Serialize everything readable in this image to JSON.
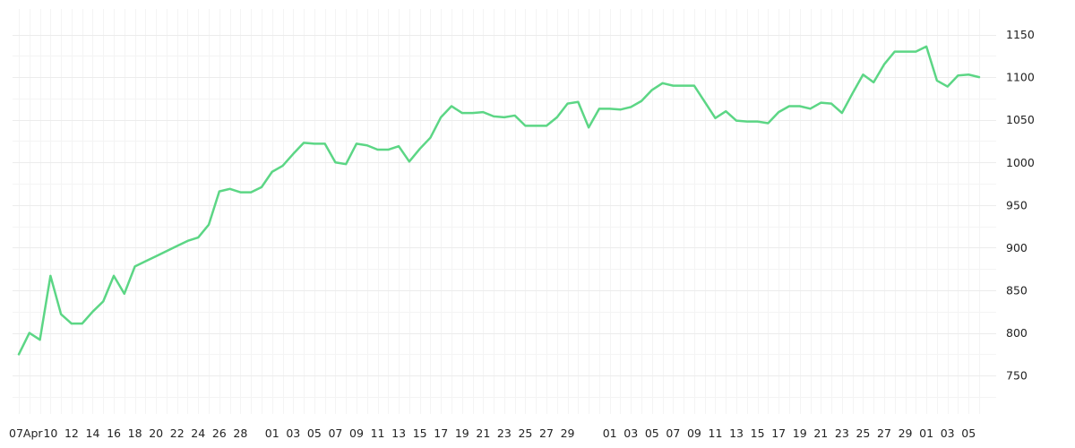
{
  "chart_data": {
    "type": "line",
    "title": "",
    "xlabel": "",
    "ylabel": "",
    "grid": true,
    "y_axis_position": "right",
    "ylim": [
      705,
      1180
    ],
    "y_ticks": [
      750,
      800,
      850,
      900,
      950,
      1000,
      1050,
      1100,
      1150
    ],
    "x_tick_labels": [
      "07Apr",
      "10",
      "12",
      "14",
      "16",
      "18",
      "20",
      "22",
      "24",
      "26",
      "28",
      "01",
      "03",
      "05",
      "07",
      "09",
      "11",
      "13",
      "15",
      "17",
      "19",
      "21",
      "23",
      "25",
      "27",
      "29",
      "01",
      "03",
      "05",
      "07",
      "09",
      "11",
      "13",
      "15",
      "17",
      "19",
      "21",
      "23",
      "25",
      "27",
      "29",
      "01",
      "03",
      "05"
    ],
    "series": [
      {
        "color": "#5cd685",
        "values": [
          775,
          800,
          792,
          867,
          822,
          811,
          811,
          825,
          837,
          867,
          846,
          878,
          884,
          890,
          896,
          902,
          908,
          912,
          927,
          966,
          969,
          965,
          965,
          971,
          989,
          996,
          1010,
          1023,
          1022,
          1022,
          1000,
          998,
          1022,
          1020,
          1015,
          1015,
          1019,
          1001,
          1016,
          1029,
          1053,
          1066,
          1058,
          1058,
          1059,
          1054,
          1053,
          1055,
          1043,
          1043,
          1043,
          1053,
          1069,
          1071,
          1041,
          1063,
          1063,
          1062,
          1065,
          1072,
          1085,
          1093,
          1090,
          1090,
          1090,
          1071,
          1052,
          1060,
          1049,
          1048,
          1048,
          1046,
          1059,
          1066,
          1066,
          1063,
          1070,
          1069,
          1058,
          1081,
          1103,
          1094,
          1115,
          1130,
          1130,
          1130,
          1136,
          1096,
          1089,
          1102,
          1103,
          1100
        ]
      }
    ]
  }
}
